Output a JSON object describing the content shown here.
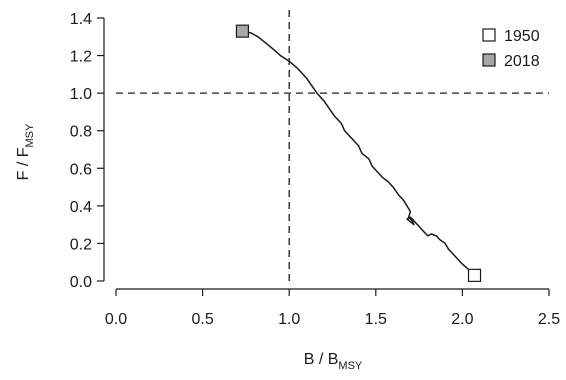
{
  "chart_data": {
    "type": "line",
    "xlabel": {
      "main": "B / B",
      "sub": "MSY"
    },
    "ylabel": {
      "main": "F / F",
      "sub": "MSY"
    },
    "xlim": [
      0,
      2.5
    ],
    "ylim": [
      0,
      1.4
    ],
    "x_ticks": [
      "0.0",
      "0.5",
      "1.0",
      "1.5",
      "2.0",
      "2.5"
    ],
    "y_ticks": [
      "0.0",
      "0.2",
      "0.4",
      "0.6",
      "0.8",
      "1.0",
      "1.2",
      "1.4"
    ],
    "grid": false,
    "legend_position": "top-right",
    "reference_lines": {
      "vertical_x": 1.0,
      "horizontal_y": 1.0,
      "style": "dashed"
    },
    "series": [
      {
        "x": [
          2.07,
          2.05,
          2.0,
          1.97,
          1.95,
          1.92,
          1.9,
          1.87,
          1.85,
          1.82,
          1.8,
          1.78,
          1.76,
          1.74,
          1.72,
          1.7,
          1.68,
          1.72,
          1.71,
          1.69,
          1.7,
          1.68,
          1.66,
          1.63,
          1.6,
          1.57,
          1.54,
          1.51,
          1.48,
          1.46,
          1.42,
          1.4,
          1.36,
          1.32,
          1.3,
          1.26,
          1.23,
          1.2,
          1.16,
          1.13,
          1.1,
          1.05,
          1.0,
          0.95,
          0.9,
          0.86,
          0.82,
          0.78,
          0.73
        ],
        "y": [
          0.03,
          0.05,
          0.09,
          0.12,
          0.14,
          0.17,
          0.2,
          0.22,
          0.24,
          0.25,
          0.24,
          0.26,
          0.28,
          0.3,
          0.32,
          0.34,
          0.33,
          0.3,
          0.32,
          0.34,
          0.37,
          0.4,
          0.43,
          0.46,
          0.5,
          0.53,
          0.55,
          0.58,
          0.61,
          0.65,
          0.68,
          0.72,
          0.76,
          0.8,
          0.84,
          0.88,
          0.92,
          0.96,
          1.0,
          1.04,
          1.08,
          1.13,
          1.17,
          1.2,
          1.24,
          1.27,
          1.3,
          1.32,
          1.33
        ]
      }
    ],
    "markers": [
      {
        "label": "1950",
        "x": 2.07,
        "y": 0.03,
        "fill": "#ffffff"
      },
      {
        "label": "2018",
        "x": 0.73,
        "y": 1.33,
        "fill": "#a8a8a8"
      }
    ],
    "colors": {
      "line": "#1a1a1a",
      "axis": "#1a1a1a"
    }
  }
}
